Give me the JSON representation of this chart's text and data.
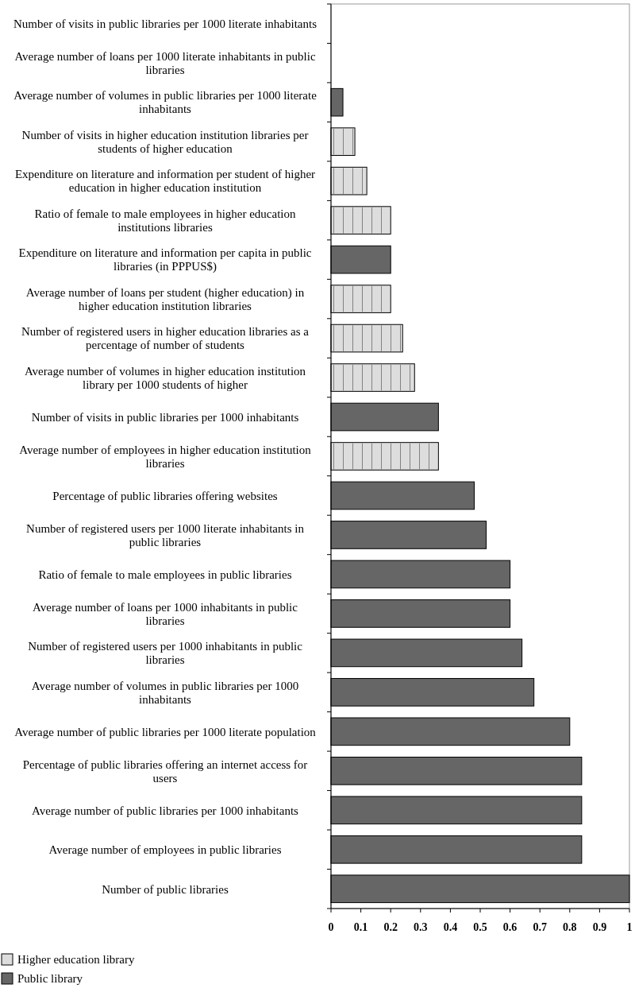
{
  "chart_data": {
    "type": "bar",
    "orientation": "horizontal",
    "categories": [
      "Number of visits in public libraries per 1000 literate inhabitants",
      "Average number of loans per 1000 literate inhabitants in public libraries",
      "Average number of volumes in public libraries per 1000 literate inhabitants",
      "Number of visits in higher education institution libraries per students of higher education",
      "Expenditure on literature and information per student of higher education in higher education institution",
      "Ratio of female to male employees in higher education institutions libraries",
      "Expenditure on literature and information per capita in public libraries (in PPPUS$)",
      "Average number of loans per student (higher education) in higher education institution libraries",
      "Number of registered users in higher education libraries as a percentage of number of students",
      "Average number of volumes in higher education institution library per 1000 students of higher",
      "Number of visits in public libraries per 1000 inhabitants",
      "Average number of employees in higher education institution libraries",
      "Percentage of public libraries offering websites",
      "Number of registered users per 1000 literate inhabitants in public libraries",
      "Ratio of female to male employees in public libraries",
      "Average number of loans per 1000 inhabitants in public libraries",
      "Number of registered users per 1000 inhabitants in public libraries",
      "Average number of volumes in public libraries per 1000 inhabitants",
      "Average number of public libraries per 1000 literate population",
      "Percentage of public libraries offering an internet access for users",
      "Average number of public libraries per 1000 inhabitants",
      "Average number of employees in public libraries",
      "Number of public libraries"
    ],
    "series": [
      {
        "name": "Higher education library",
        "color": "#dddddd",
        "values": [
          null,
          null,
          null,
          0.08,
          0.12,
          0.2,
          null,
          0.2,
          0.24,
          0.28,
          null,
          0.36,
          null,
          null,
          null,
          null,
          null,
          null,
          null,
          null,
          null,
          null,
          null
        ]
      },
      {
        "name": "Public library",
        "color": "#666666",
        "values": [
          0,
          0,
          0.04,
          null,
          null,
          null,
          0.2,
          null,
          null,
          null,
          0.36,
          null,
          0.48,
          0.52,
          0.6,
          0.6,
          0.64,
          0.68,
          0.8,
          0.84,
          0.84,
          0.84,
          1
        ]
      }
    ],
    "xlim": [
      0,
      1
    ],
    "xticks": [
      0,
      0.1,
      0.2,
      0.3,
      0.4,
      0.5,
      0.6,
      0.7,
      0.8,
      0.9,
      1
    ],
    "grid": false,
    "legend": "bottom left"
  }
}
